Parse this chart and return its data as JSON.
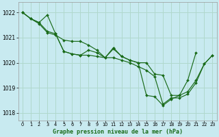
{
  "title": "Graphe pression niveau de la mer (hPa)",
  "background_color": "#c8eaf0",
  "grid_color": "#b0d8cc",
  "line_color": "#1a6b1a",
  "xlim": [
    -0.5,
    23.5
  ],
  "ylim": [
    1017.7,
    1022.4
  ],
  "yticks": [
    1018,
    1019,
    1020,
    1021,
    1022
  ],
  "xticks": [
    0,
    1,
    2,
    3,
    4,
    5,
    6,
    7,
    8,
    9,
    10,
    11,
    12,
    13,
    14,
    15,
    16,
    17,
    18,
    19,
    20,
    21,
    22,
    23
  ],
  "series1": [
    1022.0,
    1021.75,
    1021.6,
    1021.9,
    1021.15,
    1020.45,
    1020.35,
    1020.3,
    1020.5,
    1020.4,
    1020.2,
    1020.6,
    1020.25,
    1020.1,
    1020.0,
    1018.7,
    1018.65,
    1018.3,
    1018.55,
    1018.7,
    1018.85,
    1019.3,
    1019.95,
    1020.3
  ],
  "series2": [
    1022.0,
    1021.75,
    1021.6,
    1021.25,
    1021.15,
    1020.45,
    1020.35,
    1020.3,
    1020.3,
    1020.25,
    1020.2,
    1020.55,
    1020.25,
    1020.1,
    1020.0,
    1020.0,
    1019.55,
    1019.5,
    1018.7,
    1018.7,
    1019.3,
    1020.4,
    null,
    null
  ],
  "series3": [
    1022.0,
    1021.75,
    1021.55,
    1021.2,
    1021.1,
    1020.9,
    1020.85,
    1020.85,
    1020.7,
    1020.5,
    1020.2,
    1020.2,
    1020.1,
    1020.0,
    1019.85,
    1019.7,
    1019.45,
    1018.35,
    1018.6,
    1018.6,
    1018.75,
    1019.2,
    1019.95,
    1020.3
  ]
}
